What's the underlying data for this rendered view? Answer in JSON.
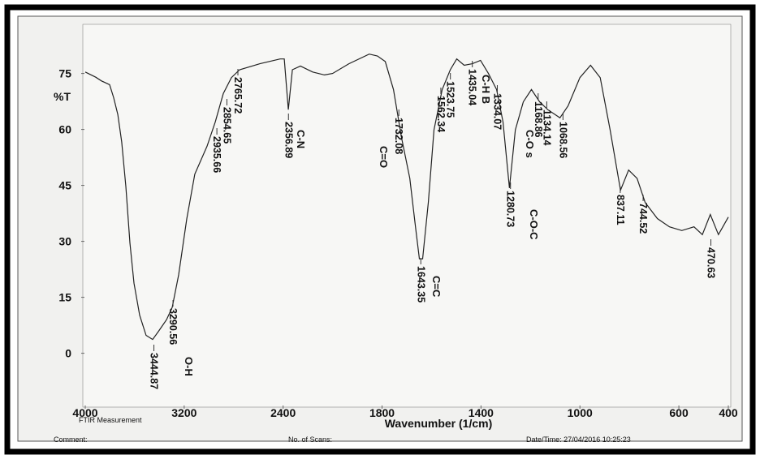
{
  "chart_data": {
    "type": "line",
    "xlabel": "Wavenumber (1/cm)",
    "ylabel": "%T",
    "note": "FTIR Measurement",
    "footer": [
      "Comment:",
      "No. of Scans:",
      "Date/Time: 27/04/2016 10:25:23"
    ],
    "xlim": [
      4000,
      400
    ],
    "ylim": [
      -14,
      86
    ],
    "xticks": [
      4000,
      3200,
      2400,
      1800,
      1400,
      1000,
      600,
      400
    ],
    "yticks": [
      0,
      15,
      30,
      45,
      60,
      75
    ],
    "color": "#222222",
    "x": [
      4000,
      3915,
      3869,
      3803,
      3770,
      3737,
      3705,
      3672,
      3639,
      3606,
      3560,
      3508,
      3455,
      3409,
      3343,
      3297,
      3245,
      3179,
      3114,
      3015,
      2949,
      2884,
      2818,
      2752,
      2588,
      2424,
      2391,
      2358,
      2325,
      2260,
      2161,
      2066,
      2000,
      1934,
      1852,
      1819,
      1787,
      1754,
      1721,
      1688,
      1665,
      1649,
      1636,
      1613,
      1590,
      1557,
      1524,
      1498,
      1468,
      1435,
      1402,
      1370,
      1337,
      1311,
      1285,
      1261,
      1229,
      1196,
      1163,
      1130,
      1081,
      1048,
      1000,
      957,
      918,
      878,
      836,
      803,
      769,
      736,
      687,
      638,
      588,
      539,
      505,
      473,
      440,
      400
    ],
    "values": [
      75.4,
      74,
      73,
      72,
      68.5,
      64,
      56.6,
      44.7,
      29.6,
      18.8,
      10.2,
      4.8,
      3.7,
      5.8,
      9,
      12.3,
      21,
      36,
      48,
      55.5,
      62,
      69.6,
      73.9,
      76,
      77.6,
      78.9,
      78.9,
      65.3,
      76,
      77,
      75.4,
      74.6,
      75,
      77.6,
      80.2,
      79.7,
      78.2,
      70.7,
      57.7,
      46.9,
      33.9,
      25.3,
      25.3,
      40.4,
      59.9,
      70.7,
      76,
      78.9,
      77.2,
      77.6,
      78.5,
      75,
      70.7,
      62,
      44.3,
      59.9,
      67.4,
      70.7,
      67.4,
      65.3,
      63.1,
      66.3,
      73.9,
      77.2,
      73.9,
      59.9,
      43.7,
      49.1,
      46.9,
      40.4,
      36.1,
      33.9,
      32.9,
      33.9,
      31.8,
      37.2,
      31.8,
      36.5
    ],
    "peaks": [
      3444.87,
      3290.56,
      2935.66,
      2854.65,
      2765.72,
      2356.89,
      1732.08,
      1643.35,
      1562.34,
      1523.75,
      1435.04,
      1334.07,
      1280.73,
      1168.86,
      1134.14,
      1068.56,
      837.11,
      744.52,
      470.63
    ],
    "groups": [
      "O-H",
      "C-N",
      "C=O",
      "C=C",
      "C-H B",
      "C-O s",
      "C-O-C"
    ]
  }
}
